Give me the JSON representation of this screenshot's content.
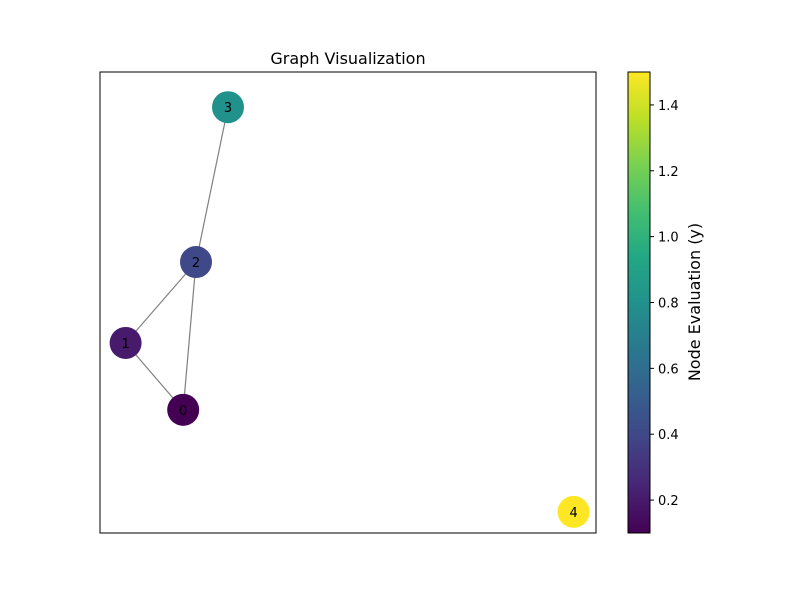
{
  "chart_data": {
    "type": "network-graph",
    "title": "Graph Visualization",
    "nodes": [
      {
        "id": "0",
        "label": "0",
        "x": -0.29,
        "y": -0.25,
        "value": 0.1
      },
      {
        "id": "1",
        "label": "1",
        "x": -0.47,
        "y": -0.06,
        "value": 0.2
      },
      {
        "id": "2",
        "label": "2",
        "x": -0.25,
        "y": 0.17,
        "value": 0.4
      },
      {
        "id": "3",
        "label": "3",
        "x": -0.15,
        "y": 0.61,
        "value": 0.8
      },
      {
        "id": "4",
        "label": "4",
        "x": 0.93,
        "y": -0.54,
        "value": 1.5
      }
    ],
    "edges": [
      {
        "source": "0",
        "target": "1"
      },
      {
        "source": "0",
        "target": "2"
      },
      {
        "source": "1",
        "target": "2"
      },
      {
        "source": "2",
        "target": "3"
      }
    ],
    "xlim": [
      -0.55,
      1.0
    ],
    "ylim": [
      -0.6,
      0.71
    ],
    "ticks_visible": false,
    "edge_color": "#808080",
    "colormap": "viridis",
    "colorbar": {
      "label": "Node Evaluation (y)",
      "range": [
        0.1,
        1.5
      ],
      "ticks": [
        0.2,
        0.4,
        0.6,
        0.8,
        1.0,
        1.2,
        1.4
      ],
      "tick_labels": [
        "0.2",
        "0.4",
        "0.6",
        "0.8",
        "1.0",
        "1.2",
        "1.4"
      ]
    }
  }
}
